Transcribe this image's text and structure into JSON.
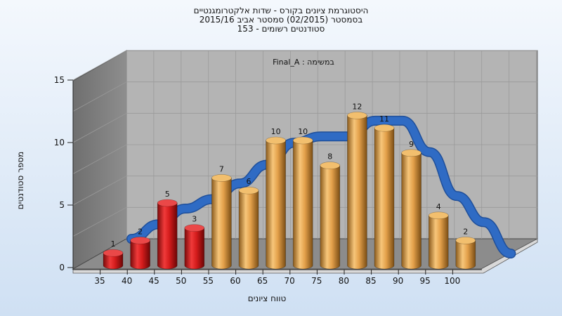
{
  "titles": {
    "line1": "היסטוגרמת ציונים בקורס - שדות אלקטרומגנטיים",
    "line2": "בסמסטר  (02/2015)  סמסטר אביב 2015/16",
    "line3": "סטודנטים רשומים - 153"
  },
  "chart_data": {
    "type": "bar",
    "title": "היסטוגרמת ציונים בקורס - שדות אלקטרומגנטיים",
    "subtitle": "בסמסטר  (02/2015)  סמסטר אביב 2015/16 — סטודנטים רשומים - 153",
    "annotation": "Final_A : במשימה",
    "xlabel": "טווח ציונים",
    "ylabel": "מספר סטודנטים",
    "ylim": [
      0,
      15
    ],
    "yticks": [
      0,
      5,
      10,
      15
    ],
    "categories": [
      "35",
      "40",
      "45",
      "50",
      "55",
      "60",
      "65",
      "70",
      "75",
      "80",
      "85",
      "90",
      "95",
      "100"
    ],
    "values": [
      1,
      2,
      5,
      3,
      7,
      6,
      10,
      10,
      8,
      12,
      11,
      9,
      4,
      2
    ],
    "bar_colors": [
      "#d42020",
      "#d42020",
      "#d42020",
      "#d42020",
      "#e8a54a",
      "#e8a54a",
      "#e8a54a",
      "#e8a54a",
      "#e8a54a",
      "#e8a54a",
      "#e8a54a",
      "#e8a54a",
      "#e8a54a",
      "#e8a54a"
    ],
    "curve_color": "#2f6bc4",
    "grid": true,
    "style": "3d-cylinders"
  }
}
